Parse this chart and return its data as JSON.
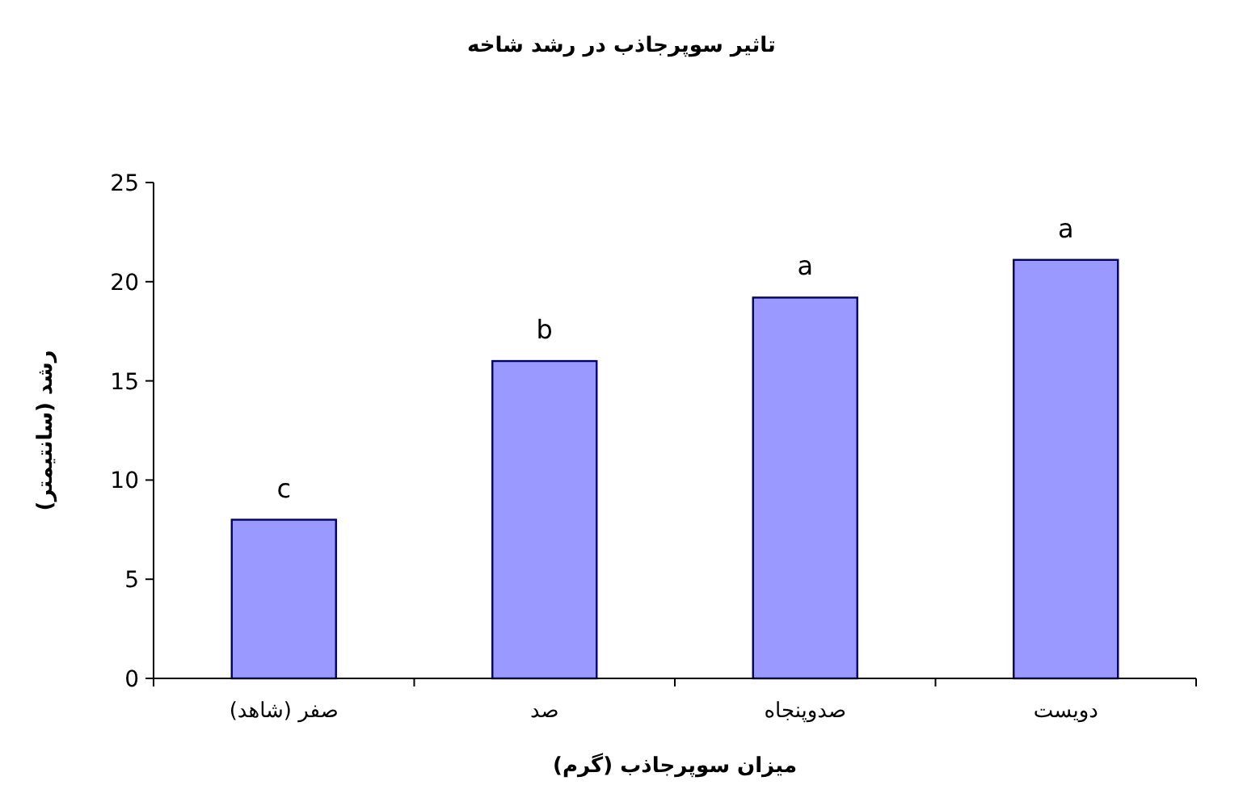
{
  "chart_data": {
    "type": "bar",
    "title": "تاثیر سوپرجاذب در رشد شاخه",
    "xlabel": "میزان سوپرجاذب (گرم)",
    "ylabel": "رشد (سانتیمتر)",
    "categories": [
      "صفر (شاهد)",
      "صد",
      "صدوپنجاه",
      "دویست"
    ],
    "values": [
      8,
      16,
      19.2,
      21.1
    ],
    "color": "#9999ff",
    "ylim": [
      0,
      25
    ],
    "yticks": [
      0,
      5,
      10,
      15,
      20,
      25
    ],
    "grid": false,
    "annotations": [
      {
        "text": "c",
        "x": "صفر (شاهد)",
        "y": 8
      },
      {
        "text": "b",
        "x": "صد",
        "y": 16
      },
      {
        "text": "a",
        "x": "صدوپنجاه",
        "y": 19.2
      },
      {
        "text": "a",
        "x": "دویست",
        "y": 21.1
      }
    ]
  }
}
